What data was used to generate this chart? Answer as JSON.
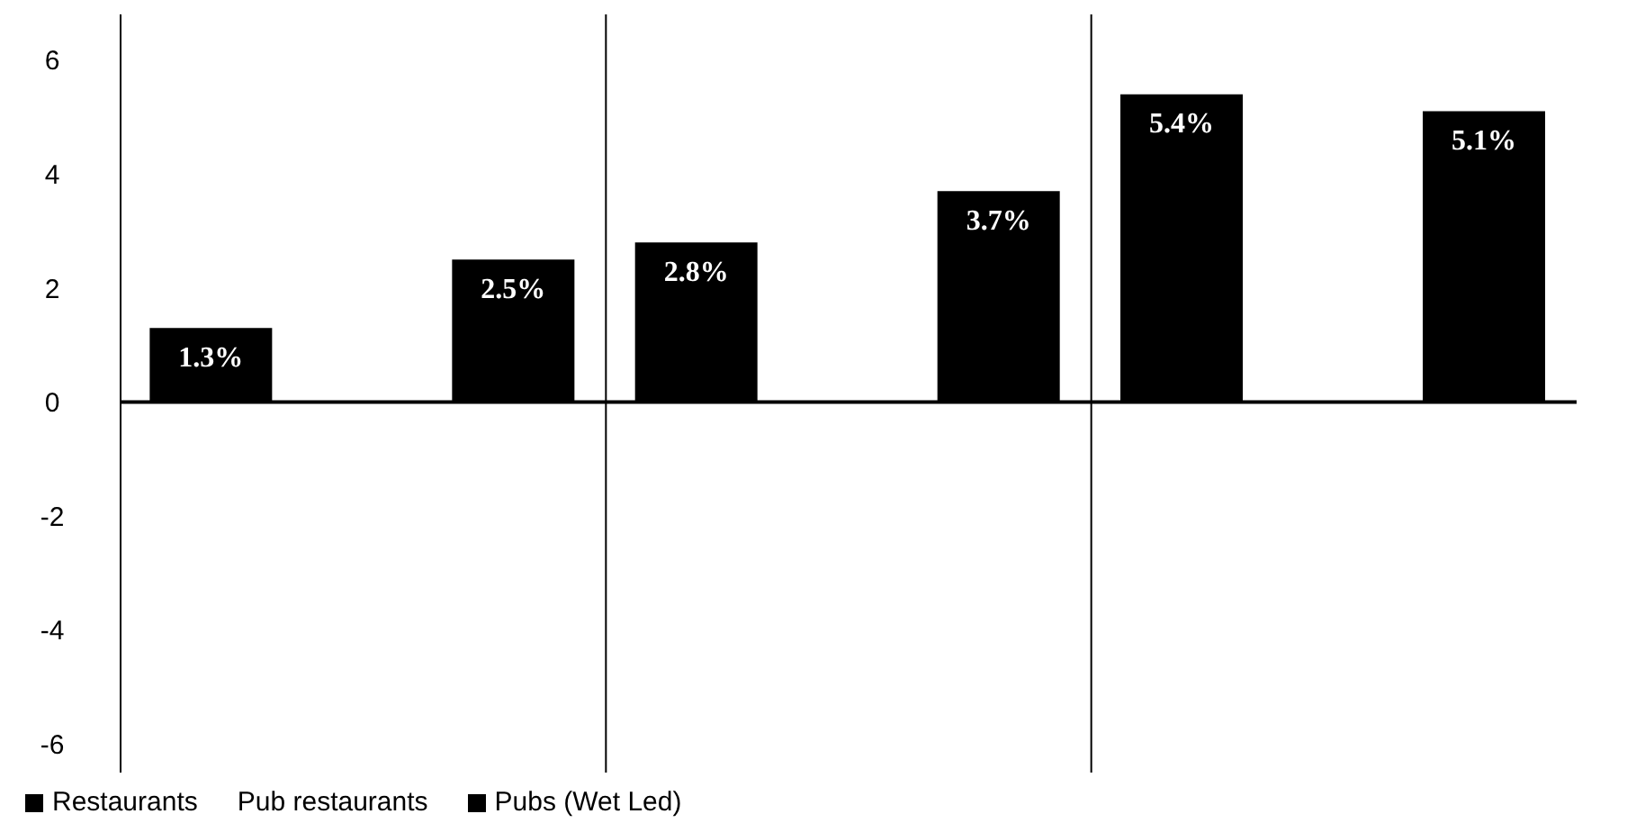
{
  "chart_data": {
    "type": "bar",
    "categories": [
      null,
      null,
      null
    ],
    "series": [
      {
        "name": "Restaurants",
        "color": "#000000",
        "values": [
          1.3,
          2.8,
          5.4
        ],
        "value_labels": [
          "1.3%",
          "2.8%",
          "5.4%"
        ]
      },
      {
        "name": "Pub restaurants",
        "values": [
          null,
          null,
          null
        ]
      },
      {
        "name": "Pubs (Wet Led)",
        "color": "#000000",
        "values": [
          2.5,
          3.7,
          5.1
        ],
        "value_labels": [
          "2.5%",
          "3.7%",
          "5.1%"
        ]
      }
    ],
    "ylim": [
      -6.5,
      6.8
    ],
    "yticks": [
      -6,
      -4,
      -2,
      0,
      2,
      4,
      6
    ],
    "grid": "x",
    "legend": "bottom left",
    "ref_lines": [
      {
        "axis": "y",
        "value": 0
      }
    ]
  }
}
